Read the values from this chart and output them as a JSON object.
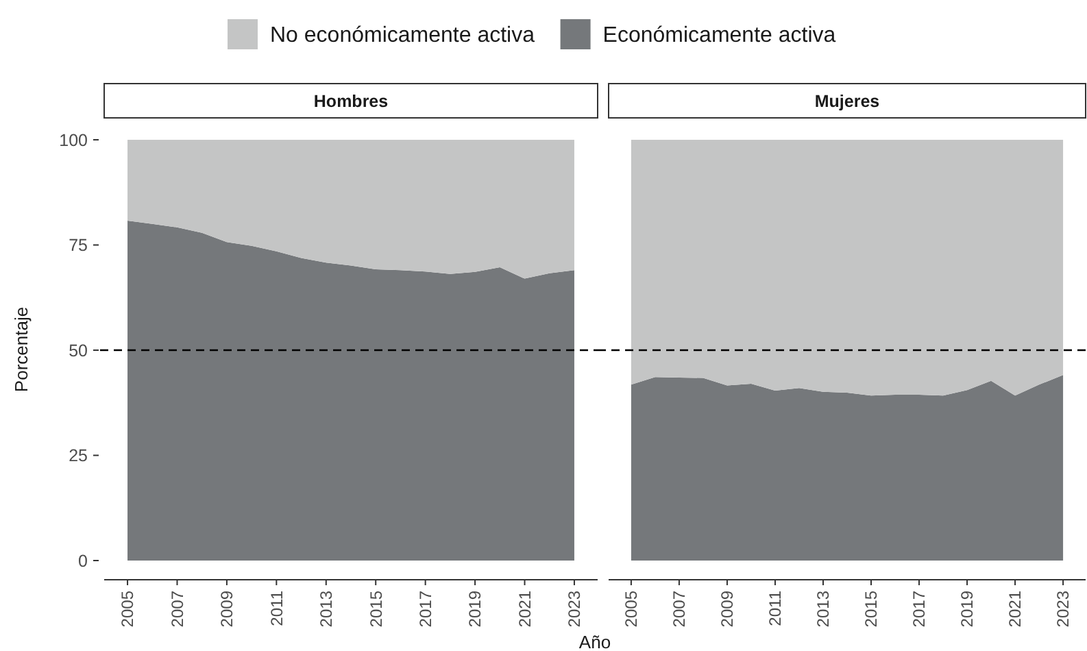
{
  "chart_data": [
    {
      "type": "area",
      "title": "Hombres",
      "ylabel": "Porcentaje",
      "xlabel": "Año",
      "stacked": true,
      "legend": "top",
      "x": [
        2005,
        2006,
        2007,
        2008,
        2009,
        2010,
        2011,
        2012,
        2013,
        2014,
        2015,
        2016,
        2017,
        2018,
        2019,
        2020,
        2021,
        2022,
        2023
      ],
      "series": [
        {
          "name": "Económicamente activa",
          "color": "#75787b",
          "values": [
            80.8,
            80.0,
            79.2,
            77.9,
            75.7,
            74.8,
            73.5,
            71.9,
            70.8,
            70.1,
            69.2,
            69.0,
            68.7,
            68.1,
            68.6,
            69.7,
            67.0,
            68.3,
            69.0
          ]
        },
        {
          "name": "No económicamente activa",
          "color": "#c4c5c5",
          "values": [
            19.2,
            20.0,
            20.8,
            22.1,
            24.3,
            25.2,
            26.5,
            28.1,
            29.2,
            29.9,
            30.8,
            31.0,
            31.3,
            31.9,
            31.4,
            30.3,
            33.0,
            31.7,
            31.0
          ]
        }
      ],
      "xlim": [
        2004.06,
        2023.94
      ],
      "xticks": [
        2005,
        2007,
        2009,
        2011,
        2013,
        2015,
        2017,
        2019,
        2021,
        2023
      ],
      "ylim": [
        0,
        100
      ],
      "yticks": [
        0,
        25,
        50,
        75,
        100
      ],
      "ref_lines": [
        {
          "axis": "y",
          "value": 50,
          "line_style": "dashed",
          "color": "#000000"
        }
      ]
    },
    {
      "type": "area",
      "title": "Mujeres",
      "stacked": true,
      "tick_labels": "x",
      "x": [
        2005,
        2006,
        2007,
        2008,
        2009,
        2010,
        2011,
        2012,
        2013,
        2014,
        2015,
        2016,
        2017,
        2018,
        2019,
        2020,
        2021,
        2022,
        2023
      ],
      "series": [
        {
          "color": "#75787b",
          "values": [
            41.8,
            43.6,
            43.5,
            43.4,
            41.6,
            42.0,
            40.4,
            41.0,
            40.1,
            39.9,
            39.2,
            39.4,
            39.4,
            39.2,
            40.5,
            42.7,
            39.2,
            41.8,
            44.1
          ]
        },
        {
          "color": "#c4c5c5",
          "values": [
            58.2,
            56.4,
            56.5,
            56.6,
            58.4,
            58.0,
            59.6,
            59.0,
            59.9,
            60.1,
            60.8,
            60.6,
            60.6,
            60.8,
            59.5,
            57.3,
            60.8,
            58.2,
            55.9
          ]
        }
      ],
      "xlim": [
        2004.06,
        2023.94
      ],
      "xticks": [
        2005,
        2007,
        2009,
        2011,
        2013,
        2015,
        2017,
        2019,
        2021,
        2023
      ],
      "ylim": [
        0,
        100
      ],
      "ref_lines": [
        {
          "axis": "y",
          "value": 50,
          "line_style": "dashed",
          "color": "#000000"
        }
      ]
    }
  ]
}
